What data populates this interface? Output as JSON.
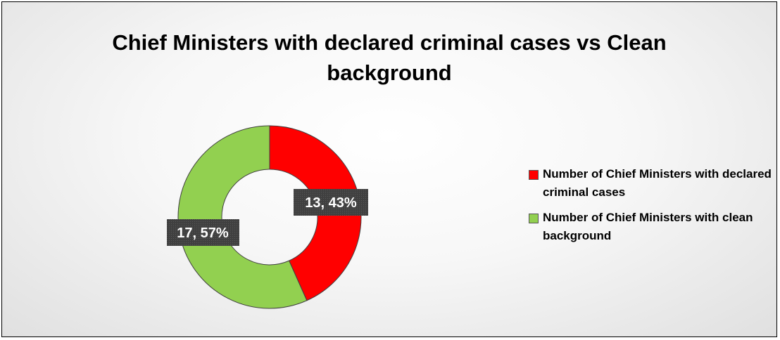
{
  "chart_data": {
    "type": "pie",
    "donut": true,
    "title": "Chief Ministers with declared criminal cases vs Clean background",
    "categories": [
      "Number of Chief Ministers with declared criminal cases",
      "Number of Chief Ministers with clean background"
    ],
    "values": [
      13,
      17
    ],
    "data_labels": [
      "13, 43%",
      "17, 57%"
    ],
    "colors": [
      "#ff0000",
      "#92d050"
    ],
    "legend_position": "right"
  }
}
